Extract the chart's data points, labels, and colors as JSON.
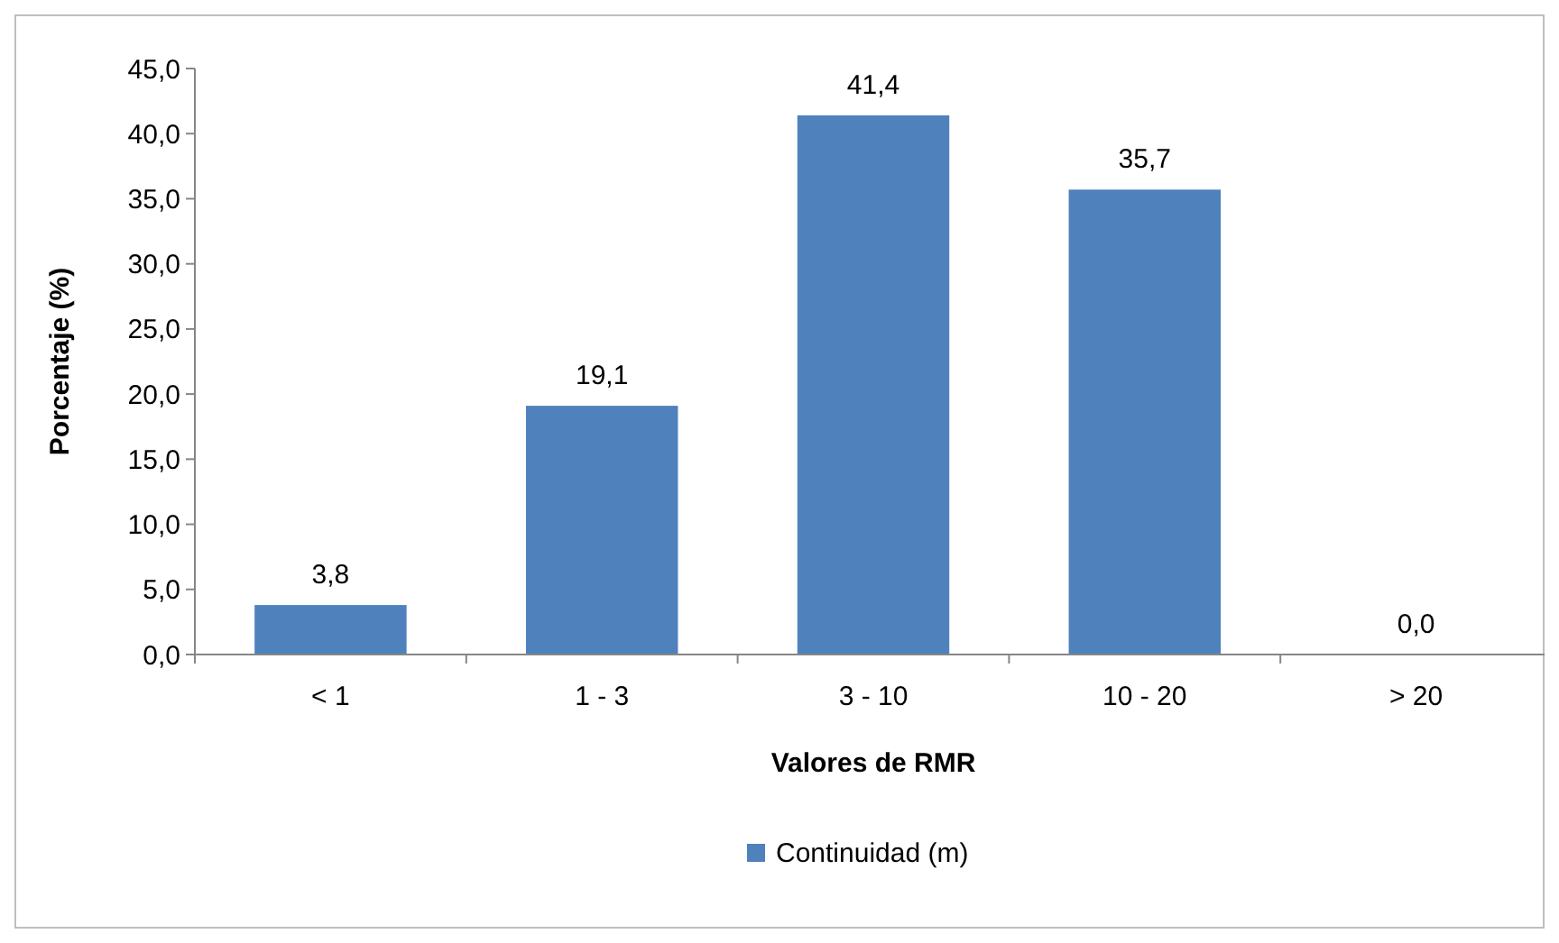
{
  "chart_data": {
    "type": "bar",
    "xlabel": "Valores de RMR",
    "ylabel": "Porcentaje (%)",
    "categories": [
      "< 1",
      "1 - 3",
      "3 - 10",
      "10 - 20",
      "> 20"
    ],
    "series": [
      {
        "name": "Continuidad (m)",
        "color": "#4f81bd",
        "values": [
          3.8,
          19.1,
          41.4,
          35.7,
          0.0
        ],
        "value_labels": [
          "3,8",
          "19,1",
          "41,4",
          "35,7",
          "0,0"
        ]
      }
    ],
    "ylim": [
      0,
      45
    ],
    "yticks": [
      {
        "value": 0,
        "label": "0,0"
      },
      {
        "value": 5,
        "label": "5,0"
      },
      {
        "value": 10,
        "label": "10,0"
      },
      {
        "value": 15,
        "label": "15,0"
      },
      {
        "value": 20,
        "label": "20,0"
      },
      {
        "value": 25,
        "label": "25,0"
      },
      {
        "value": 30,
        "label": "30,0"
      },
      {
        "value": 35,
        "label": "35,0"
      },
      {
        "value": 40,
        "label": "40,0"
      },
      {
        "value": 45,
        "label": "45,0"
      }
    ],
    "grid": false,
    "legend": "bottom"
  }
}
